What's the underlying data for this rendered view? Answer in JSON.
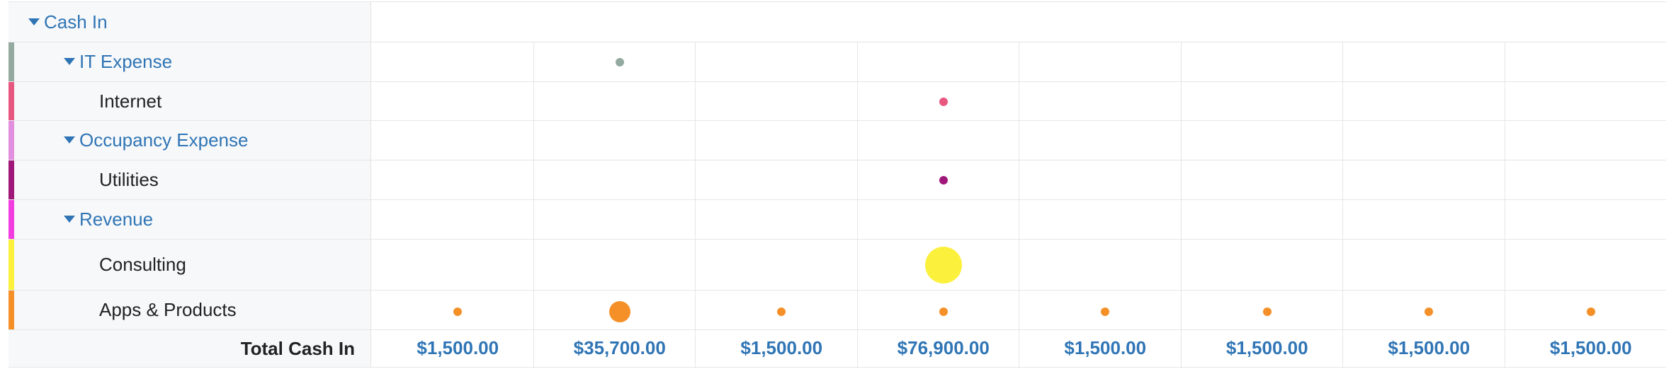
{
  "rows": [
    {
      "label": "Cash In",
      "type": "group",
      "level": 0,
      "color": null
    },
    {
      "label": "IT Expense",
      "type": "group",
      "level": 1,
      "color": "#94aaa0"
    },
    {
      "label": "Internet",
      "type": "leaf",
      "level": 2,
      "color": "#e8577f"
    },
    {
      "label": "Occupancy Expense",
      "type": "group",
      "level": 1,
      "color": "#e38fe0"
    },
    {
      "label": "Utilities",
      "type": "leaf",
      "level": 2,
      "color": "#a0177a"
    },
    {
      "label": "Revenue",
      "type": "group",
      "level": 1,
      "color": "#f23de0"
    },
    {
      "label": "Consulting",
      "type": "leaf",
      "level": 2,
      "color": "#fbf13c"
    },
    {
      "label": "Apps & Products",
      "type": "leaf",
      "level": 2,
      "color": "#f59028"
    }
  ],
  "dots": [
    {
      "row": 1,
      "col": 1,
      "size": "small",
      "color": "#94aaa0"
    },
    {
      "row": 2,
      "col": 3,
      "size": "small",
      "color": "#e8577f"
    },
    {
      "row": 4,
      "col": 3,
      "size": "small",
      "color": "#a0177a"
    },
    {
      "row": 6,
      "col": 3,
      "size": "large",
      "color": "#fbf13c"
    },
    {
      "row": 7,
      "col": 0,
      "size": "small",
      "color": "#f59028"
    },
    {
      "row": 7,
      "col": 1,
      "size": "medium",
      "color": "#f59028"
    },
    {
      "row": 7,
      "col": 2,
      "size": "small",
      "color": "#f59028"
    },
    {
      "row": 7,
      "col": 3,
      "size": "small",
      "color": "#f59028"
    },
    {
      "row": 7,
      "col": 4,
      "size": "small",
      "color": "#f59028"
    },
    {
      "row": 7,
      "col": 5,
      "size": "small",
      "color": "#f59028"
    },
    {
      "row": 7,
      "col": 6,
      "size": "small",
      "color": "#f59028"
    },
    {
      "row": 7,
      "col": 7,
      "size": "small",
      "color": "#f59028"
    }
  ],
  "total": {
    "label": "Total Cash In",
    "values": [
      "$1,500.00",
      "$35,700.00",
      "$1,500.00",
      "$76,900.00",
      "$1,500.00",
      "$1,500.00",
      "$1,500.00",
      "$1,500.00"
    ]
  },
  "colors": {
    "accent": "#2f75b5"
  }
}
